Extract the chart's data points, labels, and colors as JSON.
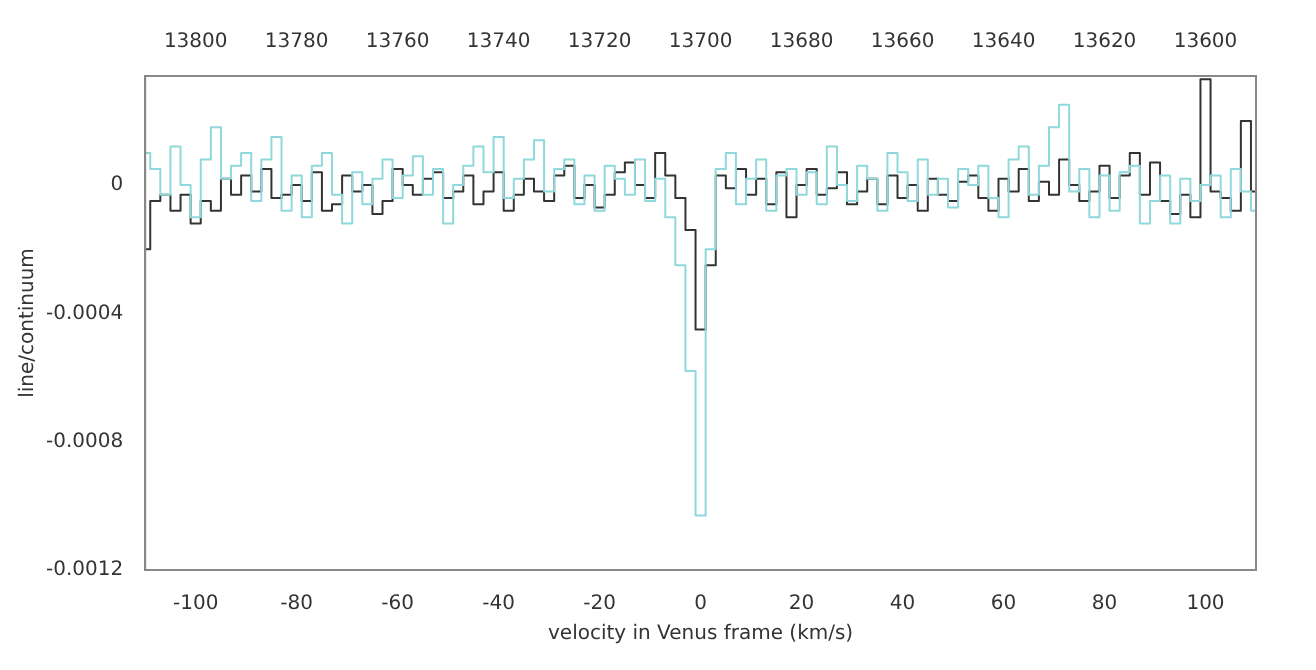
{
  "chart_data": {
    "type": "step",
    "xlabel": "velocity in Venus frame (km/s)",
    "ylabel": "line/continuum",
    "x": [
      -110,
      -108,
      -106,
      -104,
      -102,
      -100,
      -98,
      -96,
      -94,
      -92,
      -90,
      -88,
      -86,
      -84,
      -82,
      -80,
      -78,
      -76,
      -74,
      -72,
      -70,
      -68,
      -66,
      -64,
      -62,
      -60,
      -58,
      -56,
      -54,
      -52,
      -50,
      -48,
      -46,
      -44,
      -42,
      -40,
      -38,
      -36,
      -34,
      -32,
      -30,
      -28,
      -26,
      -24,
      -22,
      -20,
      -18,
      -16,
      -14,
      -12,
      -10,
      -8,
      -6,
      -4,
      -2,
      0,
      2,
      4,
      6,
      8,
      10,
      12,
      14,
      16,
      18,
      20,
      22,
      24,
      26,
      28,
      30,
      32,
      34,
      36,
      38,
      40,
      42,
      44,
      46,
      48,
      50,
      52,
      54,
      56,
      58,
      60,
      62,
      64,
      66,
      68,
      70,
      72,
      74,
      76,
      78,
      80,
      82,
      84,
      86,
      88,
      90,
      92,
      94,
      96,
      98,
      100,
      102,
      104,
      106,
      108,
      110
    ],
    "series": [
      {
        "color": "#8fd8dc",
        "values": [
          0.0001,
          5e-05,
          -3e-05,
          0.00012,
          0,
          -0.0001,
          8e-05,
          0.00018,
          2e-05,
          6e-05,
          0.0001,
          -5e-05,
          8e-05,
          0.00015,
          -8e-05,
          3e-05,
          -0.0001,
          6e-05,
          0.0001,
          -3e-05,
          -0.00012,
          4e-05,
          -6e-05,
          2e-05,
          8e-05,
          -4e-05,
          3e-05,
          9e-05,
          -3e-05,
          5e-05,
          -0.00012,
          0,
          6e-05,
          0.00012,
          4e-05,
          0.00015,
          -4e-05,
          2e-05,
          8e-05,
          0.00014,
          -2e-05,
          5e-05,
          8e-05,
          -6e-05,
          3e-05,
          -8e-05,
          6e-05,
          2e-05,
          -3e-05,
          8e-05,
          -5e-05,
          2e-05,
          -0.0001,
          -0.00025,
          -0.00058,
          -0.00103,
          -0.0002,
          5e-05,
          0.0001,
          -6e-05,
          2e-05,
          8e-05,
          -8e-05,
          3e-05,
          5e-05,
          -3e-05,
          4e-05,
          -6e-05,
          0.00012,
          0,
          -5e-05,
          6e-05,
          2e-05,
          -8e-05,
          0.0001,
          4e-05,
          -5e-05,
          8e-05,
          -3e-05,
          2e-05,
          -7e-05,
          5e-05,
          0,
          6e-05,
          -4e-05,
          -0.0001,
          8e-05,
          0.00012,
          -3e-05,
          6e-05,
          0.00018,
          0.00025,
          -2e-05,
          5e-05,
          -0.0001,
          3e-05,
          -8e-05,
          4e-05,
          6e-05,
          -0.00012,
          -5e-05,
          3e-05,
          -0.00012,
          2e-05,
          -5e-05,
          0,
          3e-05,
          -0.0001,
          5e-05,
          -2e-05,
          -8e-05
        ]
      },
      {
        "color": "#333333",
        "values": [
          -0.0002,
          -5e-05,
          -3e-05,
          -8e-05,
          -3e-05,
          -0.00012,
          -5e-05,
          -8e-05,
          2e-05,
          -3e-05,
          3e-05,
          -2e-05,
          5e-05,
          -4e-05,
          -3e-05,
          0,
          -5e-05,
          4e-05,
          -8e-05,
          -6e-05,
          3e-05,
          -2e-05,
          0,
          -9e-05,
          -5e-05,
          5e-05,
          0,
          -3e-05,
          2e-05,
          4e-05,
          -4e-05,
          -2e-05,
          3e-05,
          -6e-05,
          -2e-05,
          4e-05,
          -8e-05,
          -3e-05,
          2e-05,
          -2e-05,
          -5e-05,
          3e-05,
          6e-05,
          -4e-05,
          0,
          -7e-05,
          -3e-05,
          4e-05,
          7e-05,
          0,
          -4e-05,
          0.0001,
          3e-05,
          -4e-05,
          -0.00014,
          -0.00045,
          -0.00025,
          3e-05,
          -1e-05,
          5e-05,
          -3e-05,
          2e-05,
          -6e-05,
          4e-05,
          -0.0001,
          0,
          5e-05,
          -3e-05,
          -1e-05,
          4e-05,
          -6e-05,
          -2e-05,
          2e-05,
          -6e-05,
          3e-05,
          -4e-05,
          0,
          -8e-05,
          2e-05,
          -3e-05,
          -5e-05,
          1e-05,
          3e-05,
          -4e-05,
          -8e-05,
          2e-05,
          -2e-05,
          5e-05,
          -5e-05,
          1e-05,
          -3e-05,
          8e-05,
          0,
          -5e-05,
          -2e-05,
          6e-05,
          -4e-05,
          3e-05,
          0.0001,
          -3e-05,
          7e-05,
          -5e-05,
          -9e-05,
          -3e-05,
          -0.0001,
          0.00033,
          -2e-05,
          -4e-05,
          -8e-05,
          0.0002,
          -2e-05
        ]
      }
    ],
    "xlim": [
      -110,
      110
    ],
    "xticks": [
      -100,
      -80,
      -60,
      -40,
      -20,
      0,
      20,
      40,
      60,
      80,
      100
    ],
    "x2lim": [
      13810,
      13590
    ],
    "x2ticks": [
      13800,
      13780,
      13760,
      13740,
      13720,
      13700,
      13680,
      13660,
      13640,
      13620,
      13600
    ],
    "ylim": [
      -0.0012,
      0.00034
    ],
    "yticks": [
      -0.0012,
      -0.0008,
      -0.0004,
      0
    ],
    "grid": false,
    "legend": false
  }
}
